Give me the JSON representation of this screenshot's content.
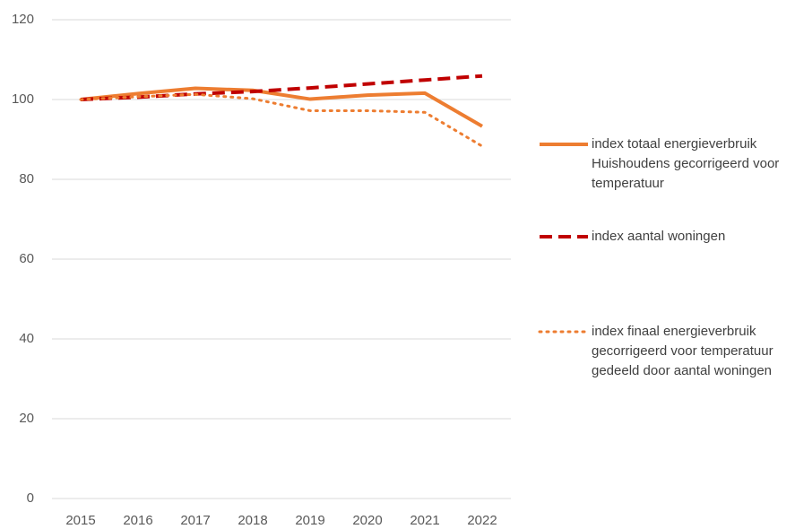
{
  "chart_data": {
    "type": "line",
    "categories": [
      "2015",
      "2016",
      "2017",
      "2018",
      "2019",
      "2020",
      "2021",
      "2022"
    ],
    "series": [
      {
        "name": "index totaal energieverbruik Huishoudens gecorrigeerd voor temperatuur",
        "color": "#ed7d31",
        "dash": "solid",
        "values": [
          100,
          101.5,
          102.8,
          102.3,
          100.1,
          101.1,
          101.6,
          93.3
        ]
      },
      {
        "name": "index aantal woningen",
        "color": "#c00000",
        "dash": "dashed",
        "values": [
          100,
          100.6,
          101.4,
          102.0,
          102.9,
          103.9,
          104.9,
          105.9
        ]
      },
      {
        "name": "index finaal energieverbruik gecorrigeerd voor temperatuur gedeeld door aantal woningen",
        "color": "#ed7d31",
        "dash": "dotted",
        "values": [
          100,
          100.7,
          101.3,
          100.2,
          97.2,
          97.2,
          96.8,
          88.3
        ]
      }
    ],
    "ylim": [
      0,
      120
    ],
    "yticks": [
      0,
      20,
      40,
      60,
      80,
      100,
      120
    ],
    "grid": true,
    "legend": "right"
  }
}
